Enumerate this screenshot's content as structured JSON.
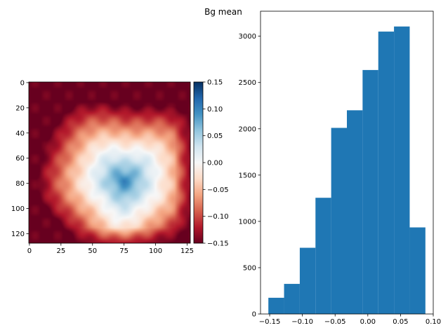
{
  "title": "Bg mean",
  "chart_data": [
    {
      "type": "heatmap",
      "colormap": "RdBu",
      "grid": false,
      "xlim": [
        -0.5,
        127.5
      ],
      "ylim": [
        127.5,
        -0.5
      ],
      "x_ticks": [
        0,
        25,
        50,
        75,
        100,
        125
      ],
      "y_ticks": [
        0,
        20,
        40,
        60,
        80,
        100,
        120
      ],
      "x_tick_labels": [
        "0",
        "25",
        "50",
        "75",
        "100",
        "125"
      ],
      "y_tick_labels": [
        "0",
        "20",
        "40",
        "60",
        "80",
        "100",
        "120"
      ],
      "color_range": [
        -0.15,
        0.15
      ],
      "colorbar_ticks": [
        0.15,
        0.1,
        0.05,
        0.0,
        -0.05,
        -0.1,
        -0.15
      ],
      "colorbar_tick_labels": [
        "0.15",
        "0.10",
        "0.05",
        "0.00",
        "−0.05",
        "−0.10",
        "−0.15"
      ],
      "field": {
        "edge_value": -0.15,
        "center_value": 0.1,
        "center": [
          75,
          78
        ]
      }
    },
    {
      "type": "bar",
      "subtype": "histogram",
      "color": "#1f77b4",
      "grid": false,
      "bin_edges": [
        -0.152,
        -0.128,
        -0.104,
        -0.08,
        -0.056,
        -0.032,
        -0.008,
        0.016,
        0.04,
        0.064,
        0.088
      ],
      "values": [
        175,
        325,
        715,
        1255,
        2010,
        2200,
        2635,
        3050,
        3105,
        935
      ],
      "xlim": [
        -0.164,
        0.1
      ],
      "ylim": [
        0,
        3270
      ],
      "x_ticks": [
        -0.15,
        -0.1,
        -0.05,
        0.0,
        0.05,
        0.1
      ],
      "x_tick_labels": [
        "−0.15",
        "−0.10",
        "−0.05",
        "0.00",
        "0.05",
        "0.10"
      ],
      "y_ticks": [
        0,
        500,
        1000,
        1500,
        2000,
        2500,
        3000
      ],
      "y_tick_labels": [
        "0",
        "500",
        "1000",
        "1500",
        "2000",
        "2500",
        "3000"
      ]
    }
  ]
}
